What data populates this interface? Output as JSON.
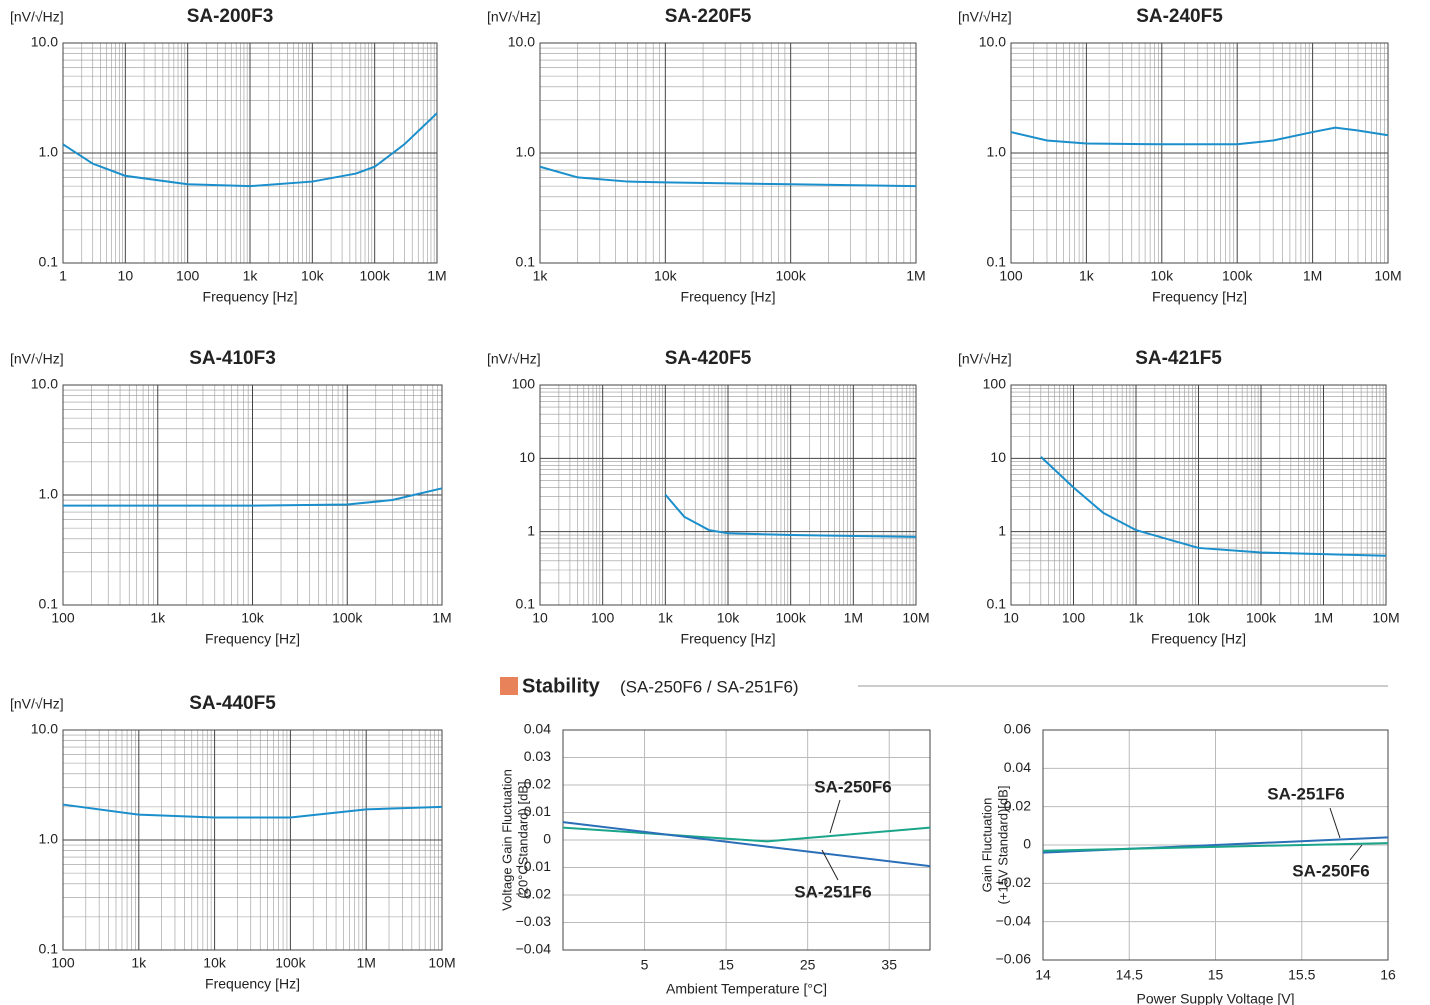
{
  "chart_data": [
    {
      "type": "line",
      "title": "SA-200F3",
      "y_unit": "[nV/√Hz]",
      "x_label": "Frequency [Hz]",
      "log_x": true,
      "log_y": true,
      "xlim": [
        1,
        1000000
      ],
      "xticks": [
        1,
        10,
        100,
        {
          "value": 1000,
          "label": "1k"
        },
        {
          "value": 10000,
          "label": "10k"
        },
        {
          "value": 100000,
          "label": "100k"
        },
        {
          "value": 1000000,
          "label": "1M"
        }
      ],
      "ylim": [
        0.1,
        10
      ],
      "yticks": [
        0.1,
        {
          "value": 1,
          "label": "1.0"
        },
        {
          "value": 10,
          "label": "10.0"
        }
      ],
      "x": [
        1,
        3,
        10,
        100,
        1000,
        10000,
        50000,
        100000,
        300000,
        1000000
      ],
      "series": [
        {
          "color": "#1a8fcc",
          "values": [
            1.2,
            0.8,
            0.62,
            0.52,
            0.5,
            0.55,
            0.65,
            0.75,
            1.2,
            2.3
          ]
        }
      ]
    },
    {
      "type": "line",
      "title": "SA-220F5",
      "y_unit": "[nV/√Hz]",
      "x_label": "Frequency [Hz]",
      "log_x": true,
      "log_y": true,
      "xlim": [
        1000,
        1000000
      ],
      "xticks": [
        {
          "value": 1000,
          "label": "1k"
        },
        {
          "value": 10000,
          "label": "10k"
        },
        {
          "value": 100000,
          "label": "100k"
        },
        {
          "value": 1000000,
          "label": "1M"
        }
      ],
      "ylim": [
        0.1,
        10
      ],
      "yticks": [
        0.1,
        {
          "value": 1,
          "label": "1.0"
        },
        {
          "value": 10,
          "label": "10.0"
        }
      ],
      "x": [
        1000,
        2000,
        5000,
        10000,
        100000,
        1000000
      ],
      "series": [
        {
          "color": "#1a8fcc",
          "values": [
            0.75,
            0.6,
            0.55,
            0.54,
            0.52,
            0.5
          ]
        }
      ]
    },
    {
      "type": "line",
      "title": "SA-240F5",
      "y_unit": "[nV/√Hz]",
      "x_label": "Frequency [Hz]",
      "log_x": true,
      "log_y": true,
      "xlim": [
        100,
        10000000
      ],
      "xticks": [
        100,
        {
          "value": 1000,
          "label": "1k"
        },
        {
          "value": 10000,
          "label": "10k"
        },
        {
          "value": 100000,
          "label": "100k"
        },
        {
          "value": 1000000,
          "label": "1M"
        },
        {
          "value": 10000000,
          "label": "10M"
        }
      ],
      "ylim": [
        0.1,
        10
      ],
      "yticks": [
        0.1,
        {
          "value": 1,
          "label": "1.0"
        },
        {
          "value": 10,
          "label": "10.0"
        }
      ],
      "x": [
        100,
        300,
        1000,
        10000,
        100000,
        300000,
        1000000,
        2000000,
        4000000,
        10000000
      ],
      "series": [
        {
          "color": "#1a8fcc",
          "values": [
            1.55,
            1.3,
            1.22,
            1.2,
            1.2,
            1.3,
            1.55,
            1.7,
            1.6,
            1.45
          ]
        }
      ]
    },
    {
      "type": "line",
      "title": "SA-410F3",
      "y_unit": "[nV/√Hz]",
      "x_label": "Frequency [Hz]",
      "log_x": true,
      "log_y": true,
      "xlim": [
        100,
        1000000
      ],
      "xticks": [
        100,
        {
          "value": 1000,
          "label": "1k"
        },
        {
          "value": 10000,
          "label": "10k"
        },
        {
          "value": 100000,
          "label": "100k"
        },
        {
          "value": 1000000,
          "label": "1M"
        }
      ],
      "ylim": [
        0.1,
        10
      ],
      "yticks": [
        0.1,
        {
          "value": 1,
          "label": "1.0"
        },
        {
          "value": 10,
          "label": "10.0"
        }
      ],
      "x": [
        100,
        1000,
        10000,
        100000,
        300000,
        1000000
      ],
      "series": [
        {
          "color": "#1a8fcc",
          "values": [
            0.8,
            0.8,
            0.8,
            0.82,
            0.9,
            1.15
          ]
        }
      ]
    },
    {
      "type": "line",
      "title": "SA-420F5",
      "y_unit": "[nV/√Hz]",
      "x_label": "Frequency [Hz]",
      "log_x": true,
      "log_y": true,
      "xlim": [
        10,
        10000000
      ],
      "xticks": [
        10,
        100,
        {
          "value": 1000,
          "label": "1k"
        },
        {
          "value": 10000,
          "label": "10k"
        },
        {
          "value": 100000,
          "label": "100k"
        },
        {
          "value": 1000000,
          "label": "1M"
        },
        {
          "value": 10000000,
          "label": "10M"
        }
      ],
      "ylim": [
        0.1,
        100
      ],
      "yticks": [
        0.1,
        1,
        10,
        100
      ],
      "x": [
        1000,
        2000,
        5000,
        10000,
        100000,
        10000000
      ],
      "series": [
        {
          "color": "#1a8fcc",
          "values": [
            3.2,
            1.6,
            1.05,
            0.95,
            0.9,
            0.85
          ]
        }
      ]
    },
    {
      "type": "line",
      "title": "SA-421F5",
      "y_unit": "[nV/√Hz]",
      "x_label": "Frequency [Hz]",
      "log_x": true,
      "log_y": true,
      "xlim": [
        10,
        10000000
      ],
      "xticks": [
        10,
        100,
        {
          "value": 1000,
          "label": "1k"
        },
        {
          "value": 10000,
          "label": "10k"
        },
        {
          "value": 100000,
          "label": "100k"
        },
        {
          "value": 1000000,
          "label": "1M"
        },
        {
          "value": 10000000,
          "label": "10M"
        }
      ],
      "ylim": [
        0.1,
        100
      ],
      "yticks": [
        0.1,
        1,
        10,
        100
      ],
      "x": [
        30,
        100,
        300,
        1000,
        10000,
        100000,
        10000000
      ],
      "series": [
        {
          "color": "#1a8fcc",
          "values": [
            10.5,
            4,
            1.8,
            1.05,
            0.6,
            0.52,
            0.47
          ]
        }
      ]
    },
    {
      "type": "line",
      "title": "SA-440F5",
      "y_unit": "[nV/√Hz]",
      "x_label": "Frequency [Hz]",
      "log_x": true,
      "log_y": true,
      "xlim": [
        100,
        10000000
      ],
      "xticks": [
        100,
        {
          "value": 1000,
          "label": "1k"
        },
        {
          "value": 10000,
          "label": "10k"
        },
        {
          "value": 100000,
          "label": "100k"
        },
        {
          "value": 1000000,
          "label": "1M"
        },
        {
          "value": 10000000,
          "label": "10M"
        }
      ],
      "ylim": [
        0.1,
        10
      ],
      "yticks": [
        0.1,
        {
          "value": 1,
          "label": "1.0"
        },
        {
          "value": 10,
          "label": "10.0"
        }
      ],
      "x": [
        100,
        1000,
        10000,
        100000,
        1000000,
        10000000
      ],
      "series": [
        {
          "color": "#1a8fcc",
          "values": [
            2.1,
            1.7,
            1.6,
            1.6,
            1.9,
            2.0
          ]
        }
      ]
    },
    {
      "type": "line",
      "x_label": "Ambient Temperature [°C]",
      "y_label": [
        "Voltage Gain Fluctuation",
        "(20°CStandard) [dB]"
      ],
      "log_x": false,
      "log_y": false,
      "xlim": [
        -5,
        40
      ],
      "xticks": [
        5,
        15,
        25,
        35
      ],
      "ylim": [
        -0.04,
        0.04
      ],
      "yticks": [
        {
          "value": -0.04,
          "label": "−0.04"
        },
        {
          "value": -0.03,
          "label": "−0.03"
        },
        {
          "value": -0.02,
          "label": "−0.02"
        },
        {
          "value": -0.01,
          "label": "−0.01"
        },
        0,
        0.01,
        0.02,
        0.03,
        0.04
      ],
      "x": [
        -5,
        20,
        40
      ],
      "series": [
        {
          "name": "SA-250F6",
          "color": "#1aa58a",
          "values": [
            0.0045,
            -0.0005,
            0.0045
          ]
        },
        {
          "name": "SA-251F6",
          "color": "#2a6fb8",
          "values": [
            0.0065,
            -0.0024,
            -0.0095
          ]
        }
      ]
    },
    {
      "type": "line",
      "x_label": "Power Supply Voltage [V]",
      "y_label": [
        "Gain Fluctuation",
        "(+15V Standard)[dB]"
      ],
      "log_x": false,
      "log_y": false,
      "xlim": [
        14,
        16
      ],
      "xticks": [
        14,
        14.5,
        15,
        15.5,
        16
      ],
      "ylim": [
        -0.06,
        0.06
      ],
      "yticks": [
        {
          "value": -0.06,
          "label": "−0.06"
        },
        {
          "value": -0.04,
          "label": "−0.04"
        },
        {
          "value": -0.02,
          "label": "−0.02"
        },
        0,
        0.02,
        0.04,
        0.06
      ],
      "x": [
        14,
        16
      ],
      "series": [
        {
          "name": "SA-251F6",
          "color": "#2a6fb8",
          "values": [
            -0.004,
            0.004
          ]
        },
        {
          "name": "SA-250F6",
          "color": "#1aa58a",
          "values": [
            -0.003,
            0.001
          ]
        }
      ]
    }
  ],
  "section": {
    "title": "Stability",
    "subtitle": "(SA-250F6 / SA-251F6)"
  }
}
